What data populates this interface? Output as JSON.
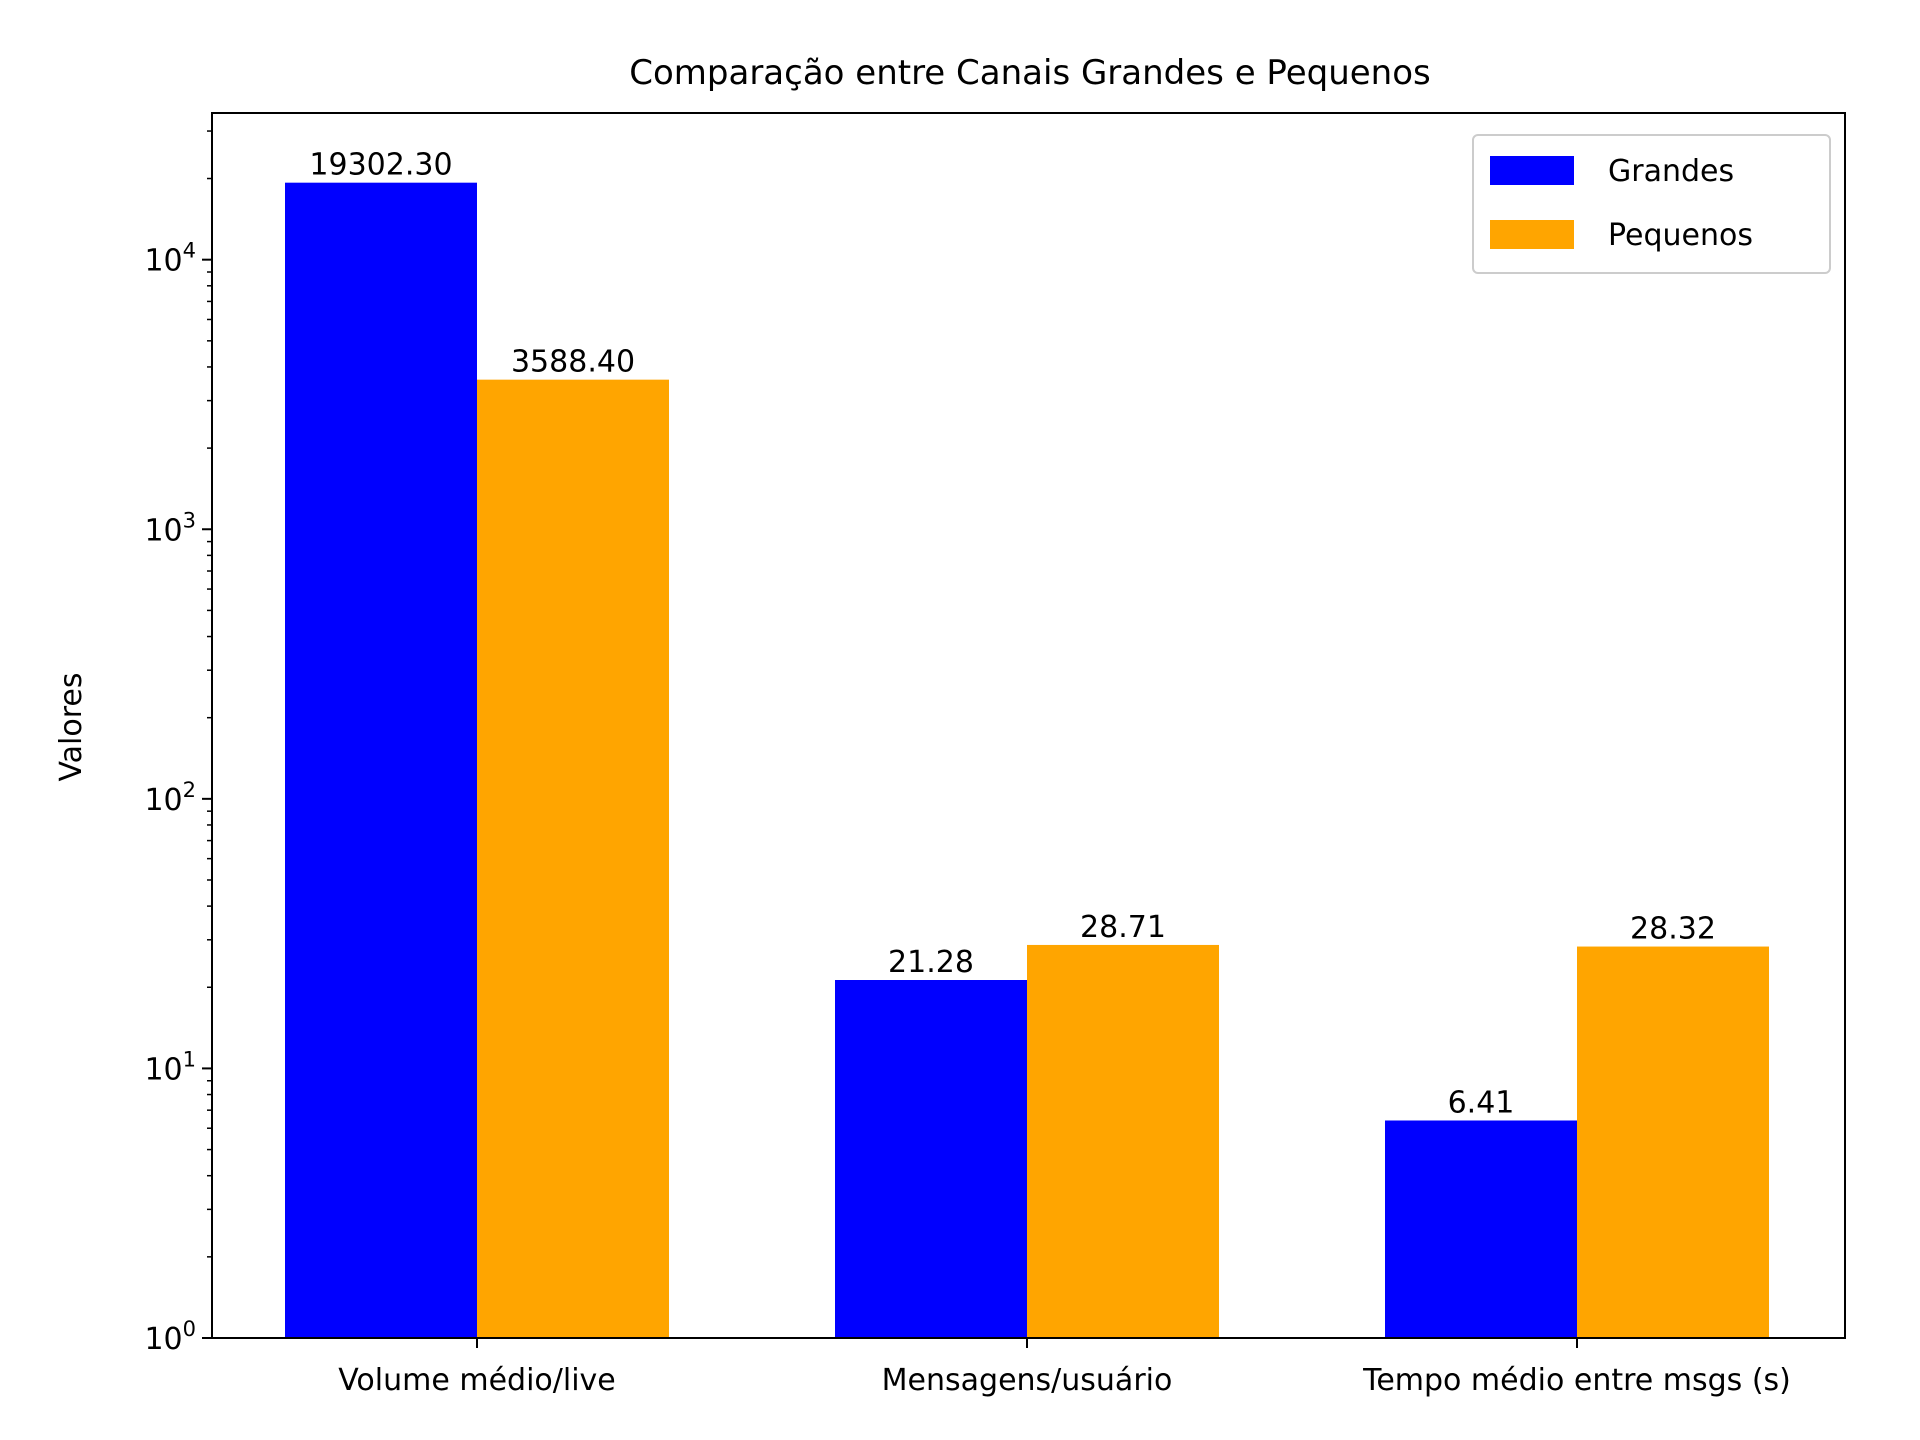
{
  "chart_data": {
    "type": "bar",
    "title": "Comparação entre Canais Grandes e Pequenos",
    "xlabel": "",
    "ylabel": "Valores",
    "yscale": "log",
    "ylim": [
      1,
      35000
    ],
    "categories": [
      "Volume médio/live",
      "Mensagens/usuário",
      "Tempo médio entre msgs (s)"
    ],
    "series": [
      {
        "name": "Grandes",
        "color": "#0000ff",
        "values": [
          19302.3,
          21.28,
          6.41
        ],
        "labels": [
          "19302.30",
          "21.28",
          "6.41"
        ]
      },
      {
        "name": "Pequenos",
        "color": "#ffa500",
        "values": [
          3588.4,
          28.71,
          28.32
        ],
        "labels": [
          "3588.40",
          "28.71",
          "28.32"
        ]
      }
    ],
    "y_ticks": [
      {
        "value": 1,
        "base": "10",
        "exp": "0"
      },
      {
        "value": 10,
        "base": "10",
        "exp": "1"
      },
      {
        "value": 100,
        "base": "10",
        "exp": "2"
      },
      {
        "value": 1000,
        "base": "10",
        "exp": "3"
      },
      {
        "value": 10000,
        "base": "10",
        "exp": "4"
      }
    ],
    "legend": {
      "position": "top-right"
    },
    "grid": false
  }
}
